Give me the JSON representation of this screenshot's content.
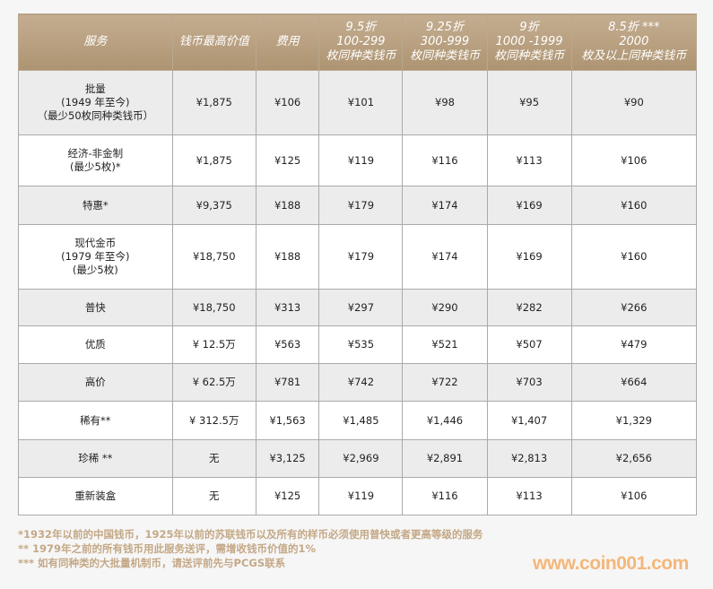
{
  "headers": [
    "服务",
    "钱币最高价值",
    "费用",
    "9.5折\n100-299\n枚同种类钱币",
    "9.25折\n300-999\n枚同种类钱币",
    "9折\n1000 -1999\n枚同种类钱币",
    "8.5折 ***\n2000\n枚及以上同种类钱币"
  ],
  "rows": [
    {
      "service": "批量\n(1949 年至今)\n（最少50枚同种类钱币）",
      "cells": [
        "¥1,875",
        "¥106",
        "¥101",
        "¥98",
        "¥95",
        "¥90"
      ],
      "h": 72
    },
    {
      "service": "经济-非金制\n(最少5枚)*",
      "cells": [
        "¥1,875",
        "¥125",
        "¥119",
        "¥116",
        "¥113",
        "¥106"
      ],
      "h": 57
    },
    {
      "service": "特惠*",
      "cells": [
        "¥9,375",
        "¥188",
        "¥179",
        "¥174",
        "¥169",
        "¥160"
      ],
      "h": 43
    },
    {
      "service": "现代金币\n(1979 年至今)\n(最少5枚)",
      "cells": [
        "¥18,750",
        "¥188",
        "¥179",
        "¥174",
        "¥169",
        "¥160"
      ],
      "h": 72
    },
    {
      "service": "普快",
      "cells": [
        "¥18,750",
        "¥313",
        "¥297",
        "¥290",
        "¥282",
        "¥266"
      ],
      "h": 41
    },
    {
      "service": "优质",
      "cells": [
        "¥ 12.5万",
        "¥563",
        "¥535",
        "¥521",
        "¥507",
        "¥479"
      ],
      "h": 42
    },
    {
      "service": "高价",
      "cells": [
        "¥ 62.5万",
        "¥781",
        "¥742",
        "¥722",
        "¥703",
        "¥664"
      ],
      "h": 42
    },
    {
      "service": "稀有**",
      "cells": [
        "¥ 312.5万",
        "¥1,563",
        "¥1,485",
        "¥1,446",
        "¥1,407",
        "¥1,329"
      ],
      "h": 43
    },
    {
      "service": "珍稀 **",
      "cells": [
        "无",
        "¥3,125",
        "¥2,969",
        "¥2,891",
        "¥2,813",
        "¥2,656"
      ],
      "h": 42
    },
    {
      "service": "重新装盒",
      "cells": [
        "无",
        "¥125",
        "¥119",
        "¥116",
        "¥113",
        "¥106"
      ],
      "h": 42
    }
  ],
  "footnotes": [
    "*1932年以前的中国钱币，1925年以前的苏联钱币以及所有的样币必须使用普快或者更高等级的服务",
    "** 1979年之前的所有钱币用此服务送评，需增收钱币价值的1%",
    "*** 如有同种类的大批量机制币，请送评前先与PCGS联系"
  ],
  "logo": "www.coin001.com"
}
